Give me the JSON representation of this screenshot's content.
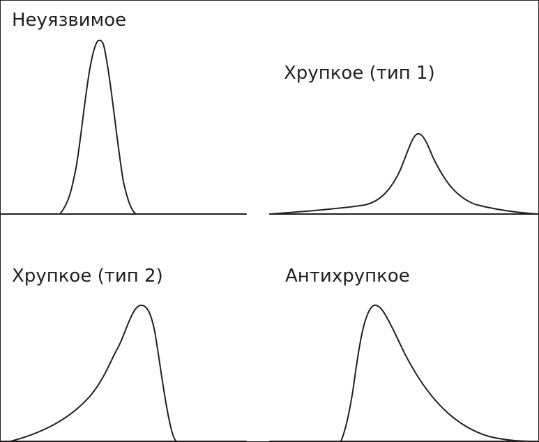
{
  "panels": {
    "invulnerable": {
      "title": "Неуязвимое"
    },
    "fragile_type1": {
      "title": "Хрупкое (тип 1)"
    },
    "fragile_type2": {
      "title": "Хрупкое (тип 2)"
    },
    "antifragile": {
      "title": "Антихрупкое"
    }
  },
  "colors": {
    "ink": "#231f20",
    "background": "#ffffff"
  }
}
